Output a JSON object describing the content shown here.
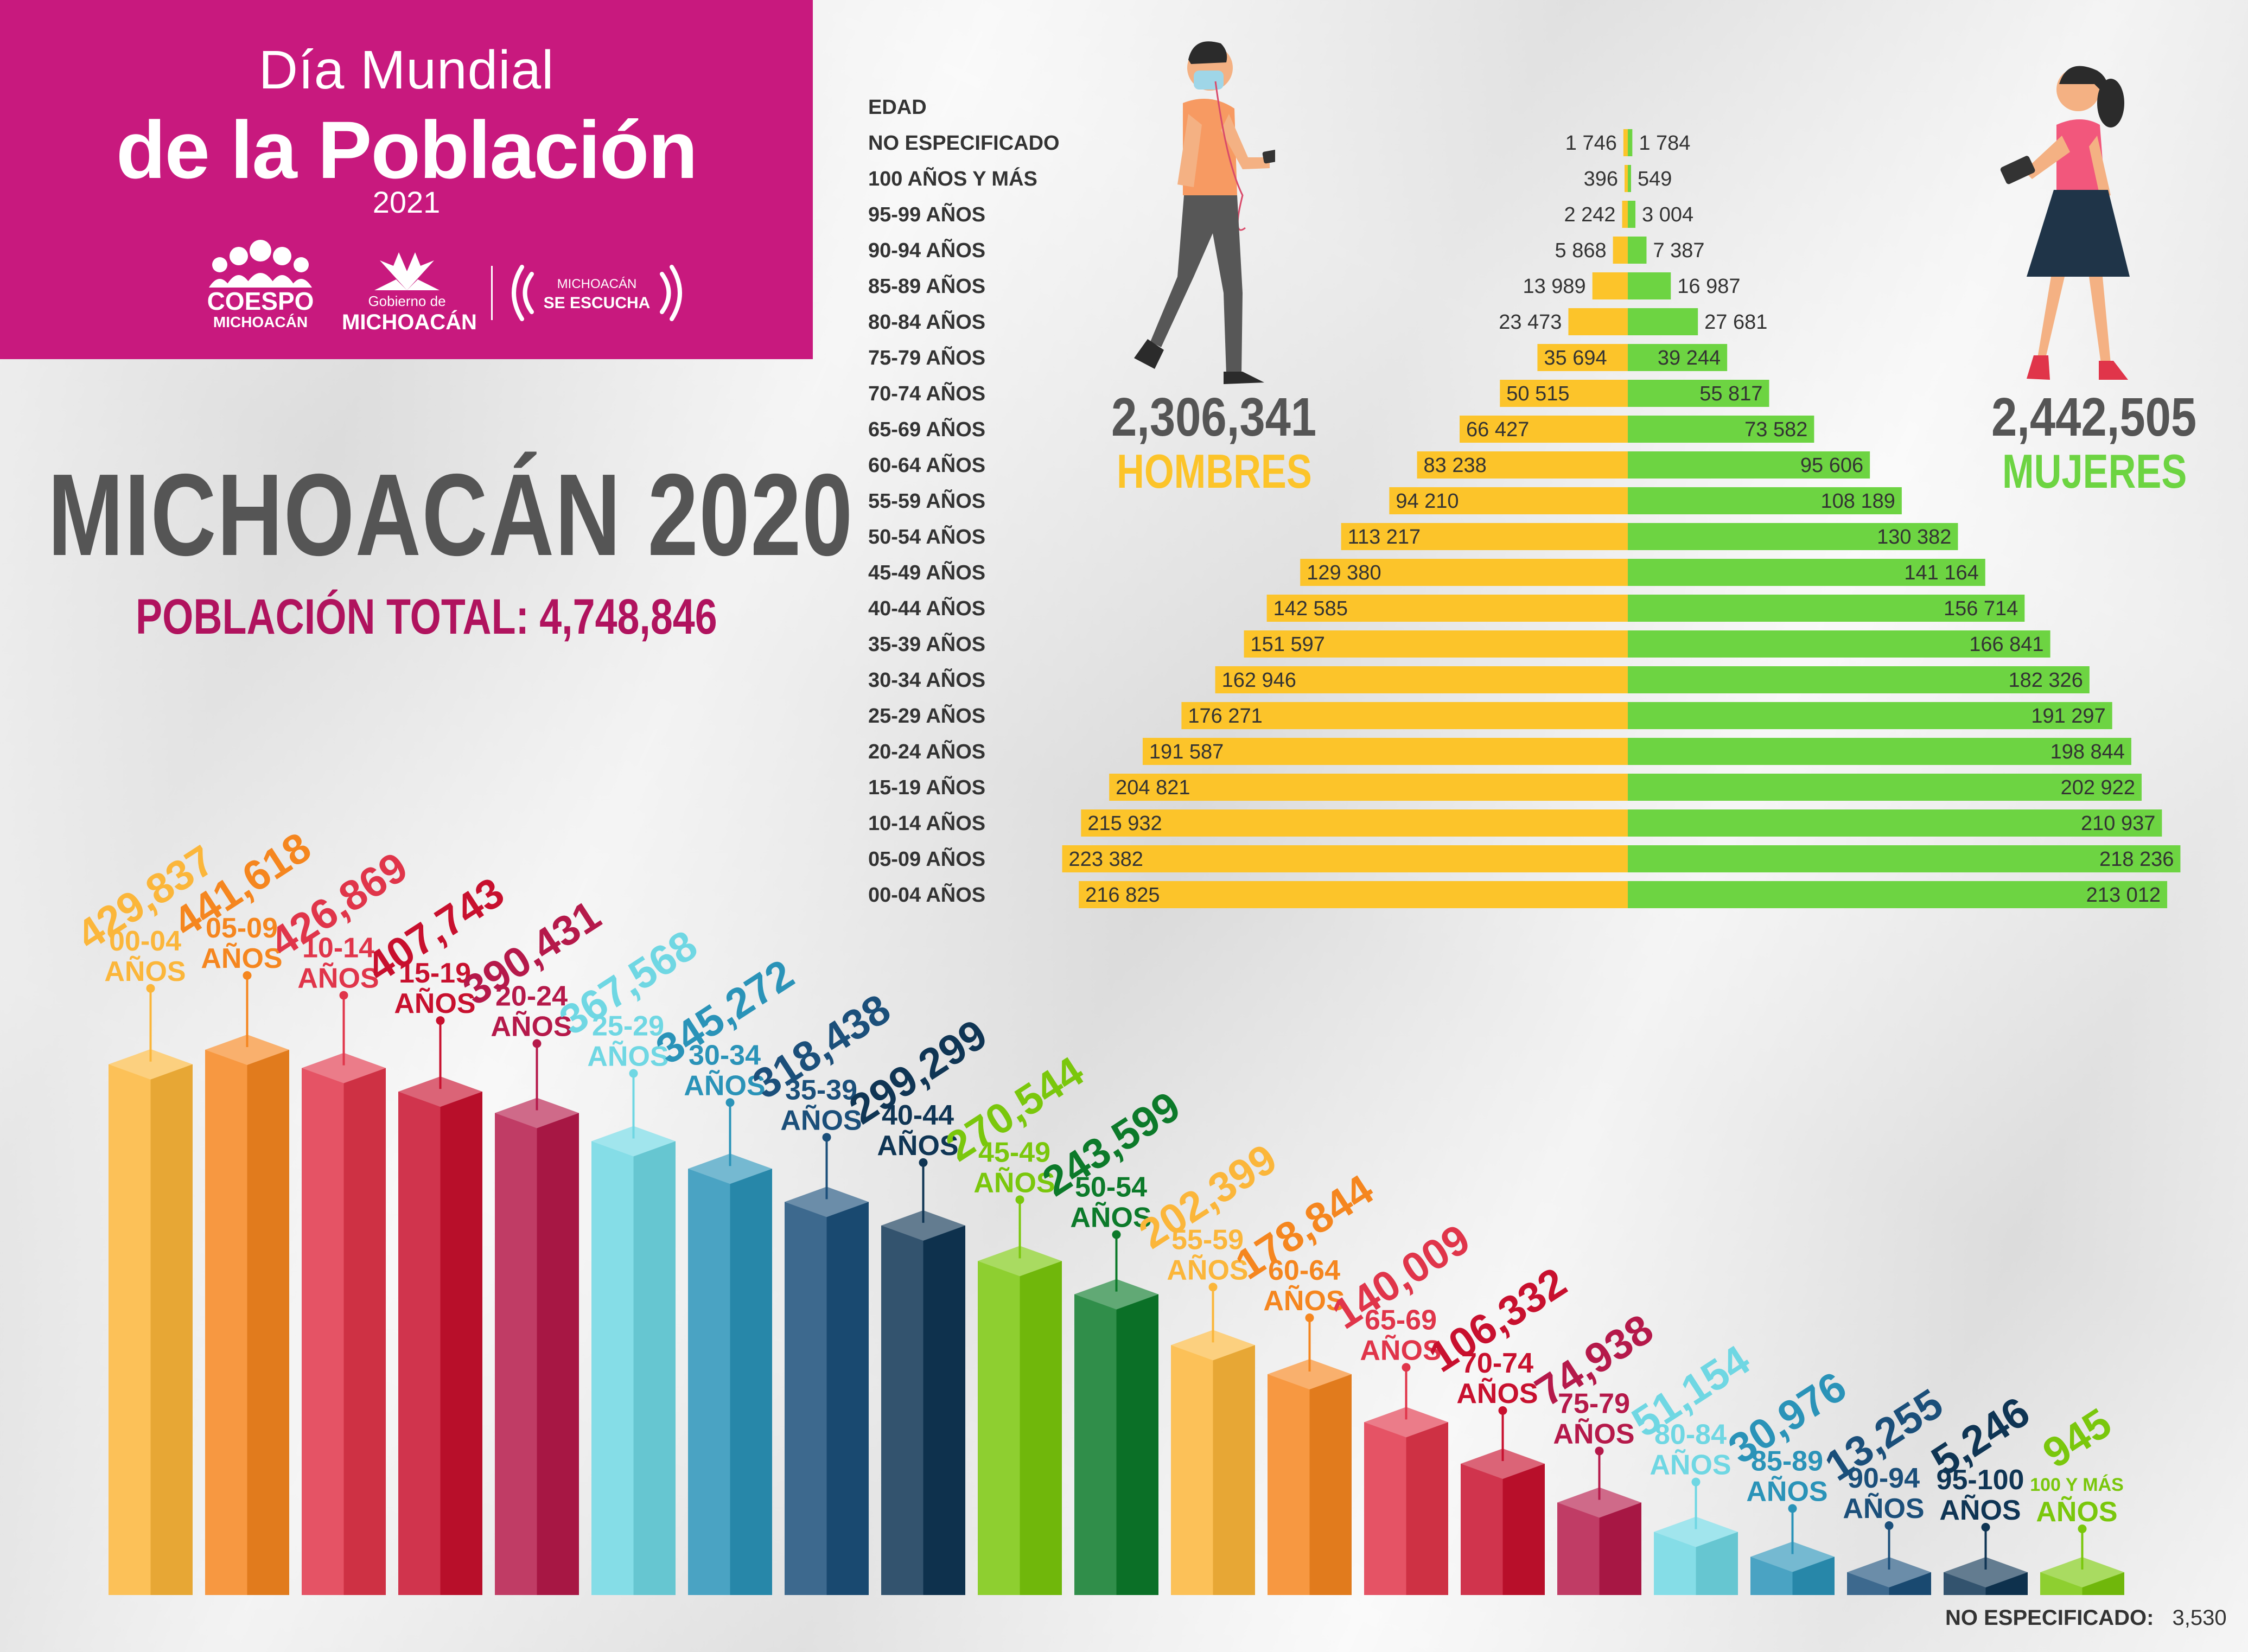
{
  "banner": {
    "title_line1": "Día Mundial",
    "title_line2": "de la Población",
    "year": "2021",
    "logo_coespo_line1": "COESPO",
    "logo_coespo_line2": "MICHOACÁN",
    "logo_gob_line1": "Gobierno de",
    "logo_gob_line2": "MICHOACÁN",
    "logo_escucha_line1": "MICHOACÁN",
    "logo_escucha_line2": "SE ESCUCHA",
    "color": "#c8197e"
  },
  "heading": {
    "title": "MICHOACÁN 2020",
    "total_label": "POBLACIÓN TOTAL:",
    "total_value": "4,748,846"
  },
  "men": {
    "total": "2,306,341",
    "label": "HOMBRES",
    "color": "#fcc42a"
  },
  "women": {
    "total": "2,442,505",
    "label": "MUJERES",
    "color": "#6dd442"
  },
  "footer": {
    "no_especificado_label": "NO ESPECIFICADO:",
    "no_especificado_value": "3,530"
  },
  "chart_data": [
    {
      "type": "bar",
      "orientation": "horizontal-population-pyramid",
      "header": "EDAD",
      "categories": [
        "NO ESPECIFICADO",
        "100 AÑOS Y MÁS",
        "95-99 AÑOS",
        "90-94 AÑOS",
        "85-89 AÑOS",
        "80-84 AÑOS",
        "75-79 AÑOS",
        "70-74 AÑOS",
        "65-69 AÑOS",
        "60-64 AÑOS",
        "55-59 AÑOS",
        "50-54 AÑOS",
        "45-49 AÑOS",
        "40-44 AÑOS",
        "35-39 AÑOS",
        "30-34 AÑOS",
        "25-29 AÑOS",
        "20-24 AÑOS",
        "15-19 AÑOS",
        "10-14 AÑOS",
        "05-09 AÑOS",
        "00-04 AÑOS"
      ],
      "series": [
        {
          "name": "HOMBRES",
          "color": "#fcc42a",
          "values": [
            1746,
            396,
            2242,
            5868,
            13989,
            23473,
            35694,
            50515,
            66427,
            83238,
            94210,
            113217,
            129380,
            142585,
            151597,
            162946,
            176271,
            191587,
            204821,
            215932,
            223382,
            216825
          ],
          "labels": [
            "1 746",
            "396",
            "2 242",
            "5 868",
            "13 989",
            "23 473",
            "35 694",
            "50 515",
            "66 427",
            "83 238",
            "94 210",
            "113 217",
            "129 380",
            "142 585",
            "151 597",
            "162 946",
            "176 271",
            "191 587",
            "204 821",
            "215 932",
            "223 382",
            "216 825"
          ]
        },
        {
          "name": "MUJERES",
          "color": "#6dd442",
          "values": [
            1784,
            549,
            3004,
            7387,
            16987,
            27681,
            39244,
            55817,
            73582,
            95606,
            108189,
            130382,
            141164,
            156714,
            166841,
            182326,
            191297,
            198844,
            202922,
            210937,
            218236,
            213012
          ],
          "labels": [
            "1 784",
            "549",
            "3 004",
            "7 387",
            "16 987",
            "27 681",
            "39 244",
            "55 817",
            "73 582",
            "95 606",
            "108 189",
            "130 382",
            "141 164",
            "156 714",
            "166 841",
            "182 326",
            "191 297",
            "198 844",
            "202 922",
            "210 937",
            "218 236",
            "213 012"
          ]
        }
      ]
    },
    {
      "type": "bar",
      "style": "3d-columns",
      "categories": [
        "00-04|AÑOS",
        "05-09|AÑOS",
        "10-14|AÑOS",
        "15-19|AÑOS",
        "20-24|AÑOS",
        "25-29|AÑOS",
        "30-34|AÑOS",
        "35-39|AÑOS",
        "40-44|AÑOS",
        "45-49|AÑOS",
        "50-54|AÑOS",
        "55-59|AÑOS",
        "60-64|AÑOS",
        "65-69|AÑOS",
        "70-74|AÑOS",
        "75-79|AÑOS",
        "80-84|AÑOS",
        "85-89|AÑOS",
        "90-94|AÑOS",
        "95-100|AÑOS",
        "100 Y MÁS|AÑOS"
      ],
      "values": [
        429837,
        441618,
        426869,
        407743,
        390431,
        367568,
        345272,
        318438,
        299299,
        270544,
        243599,
        202399,
        178844,
        140009,
        106332,
        74938,
        51154,
        30976,
        13255,
        5246,
        945
      ],
      "labels": [
        "429,837",
        "441,618",
        "426,869",
        "407,743",
        "390,431",
        "367,568",
        "345,272",
        "318,438",
        "299,299",
        "270,544",
        "243,599",
        "202,399",
        "178,844",
        "140,009",
        "106,332",
        "74,938",
        "51,154",
        "30,976",
        "13,255",
        "5,246",
        "945"
      ],
      "colors": [
        "#fbb63a",
        "#f5861f",
        "#e0354a",
        "#c8102e",
        "#b5194a",
        "#6fd7e3",
        "#2a93b8",
        "#1b4f7a",
        "#0f3554",
        "#7ac70c",
        "#0c7a2a",
        "#fbb63a",
        "#f5861f",
        "#e0354a",
        "#c8102e",
        "#b5194a",
        "#6fd7e3",
        "#2a93b8",
        "#1b4f7a",
        "#0f3554",
        "#7ac70c"
      ]
    }
  ]
}
